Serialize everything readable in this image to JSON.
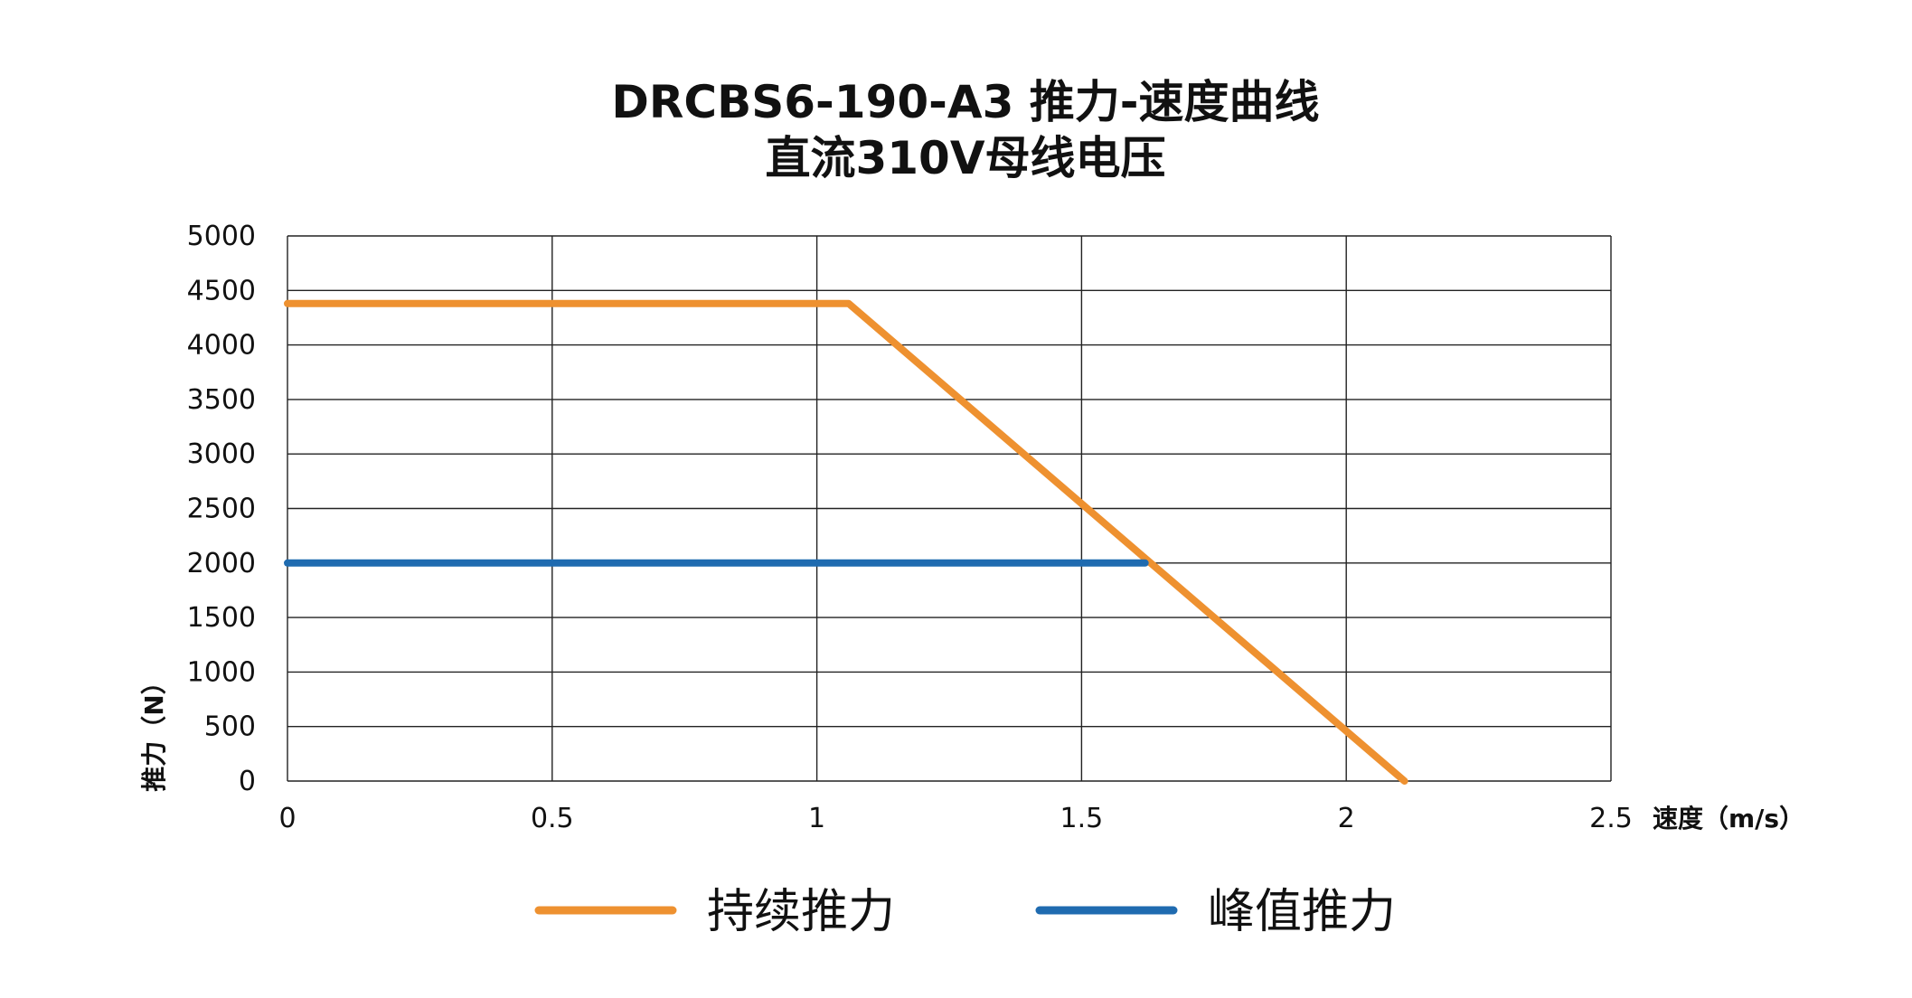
{
  "chart_data": {
    "type": "line",
    "title": "DRCBS6-190-A3 推力-速度曲线",
    "subtitle": "直流310V母线电压",
    "xlabel": "速度（m/s）",
    "ylabel": "推力（N）",
    "xlim": [
      0,
      2.5
    ],
    "ylim": [
      0,
      5000
    ],
    "x_ticks": [
      "0",
      "0.5",
      "1",
      "1.5",
      "2",
      "2.5"
    ],
    "y_ticks": [
      "0",
      "500",
      "1000",
      "1500",
      "2000",
      "2500",
      "3000",
      "3500",
      "4000",
      "4500",
      "5000"
    ],
    "grid": true,
    "legend_position": "bottom",
    "series": [
      {
        "name": "持续推力",
        "color": "#EE9130",
        "points": [
          [
            0,
            4380
          ],
          [
            1.06,
            4380
          ],
          [
            2.11,
            0
          ]
        ]
      },
      {
        "name": "峰值推力",
        "color": "#1F6BB0",
        "points": [
          [
            0,
            2000
          ],
          [
            1.62,
            2000
          ]
        ]
      }
    ]
  }
}
